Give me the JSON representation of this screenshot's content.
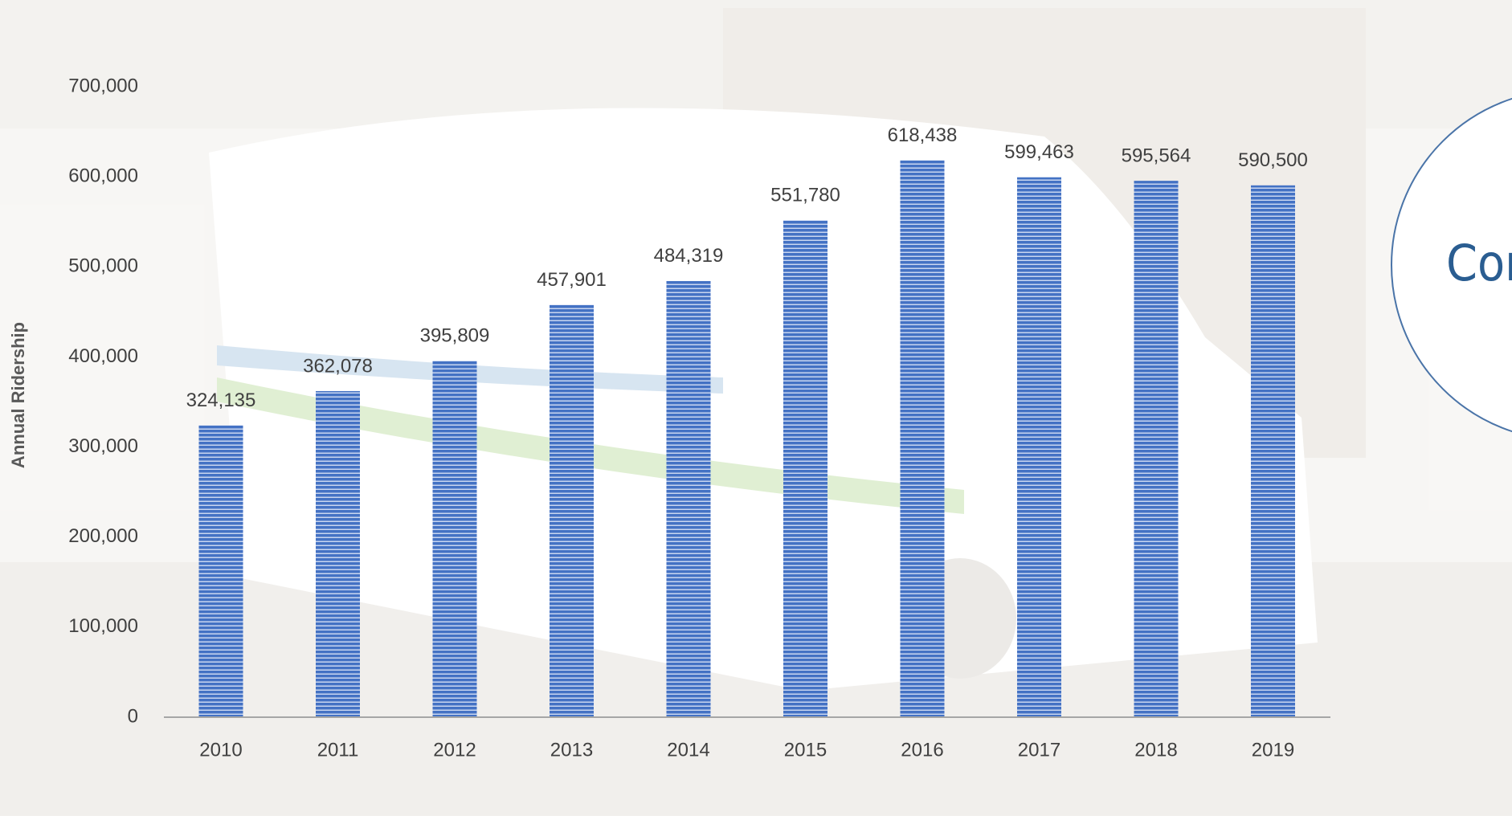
{
  "chart_data": {
    "type": "bar",
    "y_axis_label": "Annual Ridership",
    "annotation": "Con",
    "categories": [
      "2010",
      "2011",
      "2012",
      "2013",
      "2014",
      "2015",
      "2016",
      "2017",
      "2018",
      "2019"
    ],
    "values": [
      324135,
      362078,
      395809,
      457901,
      484319,
      551780,
      618438,
      599463,
      595564,
      590500
    ],
    "value_labels": [
      "324,135",
      "362,078",
      "395,809",
      "457,901",
      "484,319",
      "551,780",
      "618,438",
      "599,463",
      "595,564",
      "590,500"
    ],
    "color": "#4472c4",
    "ylim": [
      0,
      700000
    ],
    "yticks": [
      0,
      {
        "value": 100000,
        "label": "100,000"
      },
      {
        "value": 200000,
        "label": "200,000"
      },
      {
        "value": 300000,
        "label": "300,000"
      },
      {
        "value": 400000,
        "label": "400,000"
      },
      {
        "value": 500000,
        "label": "500,000"
      },
      {
        "value": 600000,
        "label": "600,000"
      },
      {
        "value": 700000,
        "label": "700,000"
      }
    ],
    "grid": false
  }
}
